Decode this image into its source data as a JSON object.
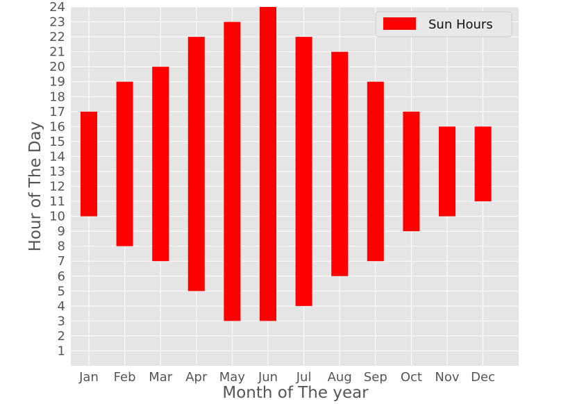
{
  "chart_data": {
    "type": "bar",
    "subtype": "floating-range",
    "title": "",
    "xlabel": "Month of The year",
    "ylabel": "Hour of The Day",
    "ylim": [
      0,
      24
    ],
    "yticks": [
      1,
      2,
      3,
      4,
      5,
      6,
      7,
      8,
      9,
      10,
      11,
      12,
      13,
      14,
      15,
      16,
      17,
      18,
      19,
      20,
      21,
      22,
      23,
      24
    ],
    "grid": true,
    "legend_position": "top-right",
    "categories": [
      "Jan",
      "Feb",
      "Mar",
      "Apr",
      "May",
      "Jun",
      "Jul",
      "Aug",
      "Sep",
      "Oct",
      "Nov",
      "Dec"
    ],
    "series": [
      {
        "name": "Sun Hours",
        "color": "#ff0000",
        "start": [
          10,
          8,
          7,
          5,
          3,
          3,
          4,
          6,
          7,
          9,
          10,
          11
        ],
        "end": [
          17,
          19,
          20,
          22,
          23,
          24,
          22,
          21,
          19,
          17,
          16,
          16
        ]
      }
    ],
    "colors": {
      "background": "#e5e5e5",
      "grid": "#ffffff",
      "bar": "#ff0000"
    }
  }
}
